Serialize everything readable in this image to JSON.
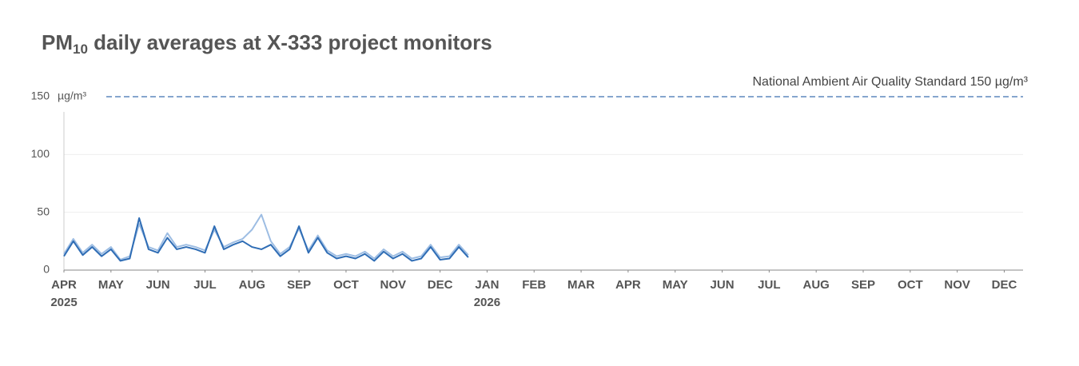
{
  "chart_data": {
    "type": "line",
    "title_prefix": "PM",
    "title_subscript": "10",
    "title": " daily averages at X-333 project monitors",
    "y_unit": "µg/m³",
    "threshold": {
      "value": 150,
      "label": "National Ambient Air Quality Standard 150 µg/m³",
      "color": "#3f6fb0"
    },
    "xlim": [
      0,
      20.4
    ],
    "xticks": [
      {
        "value": 0,
        "label": "APR"
      },
      {
        "value": 1,
        "label": "MAY"
      },
      {
        "value": 2,
        "label": "JUN"
      },
      {
        "value": 3,
        "label": "JUL"
      },
      {
        "value": 4,
        "label": "AUG"
      },
      {
        "value": 5,
        "label": "SEP"
      },
      {
        "value": 6,
        "label": "OCT"
      },
      {
        "value": 7,
        "label": "NOV"
      },
      {
        "value": 8,
        "label": "DEC"
      },
      {
        "value": 9,
        "label": "JAN"
      },
      {
        "value": 10,
        "label": "FEB"
      },
      {
        "value": 11,
        "label": "MAR"
      },
      {
        "value": 12,
        "label": "APR"
      },
      {
        "value": 13,
        "label": "MAY"
      },
      {
        "value": 14,
        "label": "JUN"
      },
      {
        "value": 15,
        "label": "JUL"
      },
      {
        "value": 16,
        "label": "AUG"
      },
      {
        "value": 17,
        "label": "SEP"
      },
      {
        "value": 18,
        "label": "OCT"
      },
      {
        "value": 19,
        "label": "NOV"
      },
      {
        "value": 20,
        "label": "DEC"
      }
    ],
    "year_labels": [
      {
        "value": 0,
        "label": "2025"
      },
      {
        "value": 9,
        "label": "2026"
      }
    ],
    "ylim": [
      0,
      150
    ],
    "yticks": [
      0,
      50,
      100,
      150
    ],
    "grid": true,
    "x": [
      0,
      0.2,
      0.4,
      0.6,
      0.8,
      1.0,
      1.2,
      1.4,
      1.6,
      1.8,
      2.0,
      2.2,
      2.4,
      2.6,
      2.8,
      3.0,
      3.2,
      3.4,
      3.6,
      3.8,
      4.0,
      4.2,
      4.4,
      4.6,
      4.8,
      5.0,
      5.2,
      5.4,
      5.6,
      5.8,
      6.0,
      6.2,
      6.4,
      6.6,
      6.8,
      7.0,
      7.2,
      7.4,
      7.6,
      7.8,
      8.0,
      8.2,
      8.4,
      8.6
    ],
    "series": [
      {
        "color": "#9dbde3",
        "values": [
          14,
          27,
          15,
          22,
          14,
          20,
          9,
          12,
          40,
          20,
          17,
          32,
          20,
          22,
          20,
          17,
          35,
          20,
          24,
          27,
          35,
          48,
          25,
          14,
          20,
          36,
          17,
          30,
          17,
          12,
          14,
          12,
          16,
          10,
          18,
          12,
          16,
          10,
          12,
          22,
          11,
          12,
          22,
          13
        ]
      },
      {
        "color": "#2f6db5",
        "values": [
          12,
          25,
          13,
          20,
          12,
          18,
          8,
          10,
          45,
          18,
          15,
          28,
          18,
          20,
          18,
          15,
          38,
          18,
          22,
          25,
          20,
          18,
          22,
          12,
          18,
          38,
          15,
          28,
          15,
          10,
          12,
          10,
          14,
          8,
          16,
          10,
          14,
          8,
          10,
          20,
          9,
          10,
          20,
          11
        ]
      }
    ]
  }
}
